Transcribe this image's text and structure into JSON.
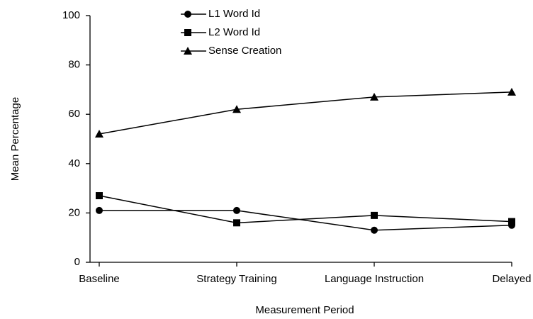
{
  "chart_data": {
    "type": "line",
    "xlabel": "Measurement Period",
    "ylabel": "Mean Percentage",
    "categories": [
      "Baseline",
      "Strategy Training",
      "Language Instruction",
      "Delayed"
    ],
    "series": [
      {
        "name": "L1 Word Id",
        "color": "#000000",
        "marker": "circle",
        "values": [
          21,
          21,
          13,
          15
        ]
      },
      {
        "name": "L2 Word Id",
        "color": "#000000",
        "marker": "square",
        "values": [
          27,
          16,
          19,
          16.5
        ]
      },
      {
        "name": "Sense Creation",
        "color": "#000000",
        "marker": "triangle",
        "values": [
          52,
          62,
          67,
          69
        ]
      }
    ],
    "ylim": [
      0,
      100
    ],
    "yticks": [
      0,
      20,
      40,
      60,
      80,
      100
    ],
    "grid": false,
    "legend": "top"
  }
}
